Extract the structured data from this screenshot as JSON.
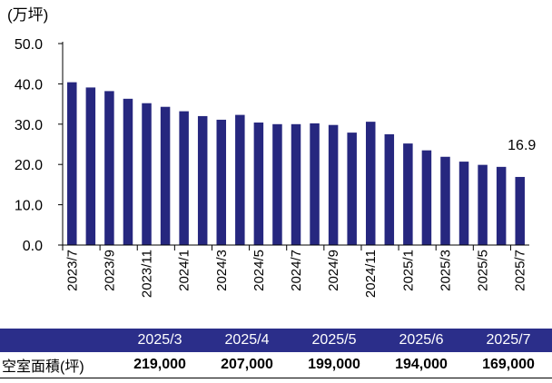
{
  "chart_data": {
    "type": "bar",
    "unit_label": "(万坪)",
    "categories": [
      "2023/7",
      "2023/8",
      "2023/9",
      "2023/10",
      "2023/11",
      "2023/12",
      "2024/1",
      "2024/2",
      "2024/3",
      "2024/4",
      "2024/5",
      "2024/6",
      "2024/7",
      "2024/8",
      "2024/9",
      "2024/10",
      "2024/11",
      "2024/12",
      "2025/1",
      "2025/2",
      "2025/3",
      "2025/4",
      "2025/5",
      "2025/6",
      "2025/7"
    ],
    "tick_labels": [
      "2023/7",
      "",
      "2023/9",
      "",
      "2023/11",
      "",
      "2024/1",
      "",
      "2024/3",
      "",
      "2024/5",
      "",
      "2024/7",
      "",
      "2024/9",
      "",
      "2024/11",
      "",
      "2025/1",
      "",
      "2025/3",
      "",
      "2025/5",
      "",
      "2025/7"
    ],
    "values": [
      40.4,
      39.1,
      38.2,
      36.3,
      35.2,
      34.3,
      33.2,
      32.0,
      31.1,
      32.3,
      30.4,
      30.0,
      30.0,
      30.2,
      29.8,
      27.9,
      30.6,
      27.5,
      25.2,
      23.5,
      21.9,
      20.7,
      19.9,
      19.4,
      16.9
    ],
    "yticks": [
      "0.0",
      "10.0",
      "20.0",
      "30.0",
      "40.0",
      "50.0"
    ],
    "ylim": [
      0,
      50
    ],
    "bar_color": "#26277f",
    "annotation": {
      "label": "16.9",
      "index": 24
    }
  },
  "table": {
    "header": [
      "2025/3",
      "2025/4",
      "2025/5",
      "2025/6",
      "2025/7"
    ],
    "row_label": "空室面積(坪)",
    "values": [
      "219,000",
      "207,000",
      "199,000",
      "194,000",
      "169,000"
    ],
    "header_color": "#2b2e8a"
  }
}
